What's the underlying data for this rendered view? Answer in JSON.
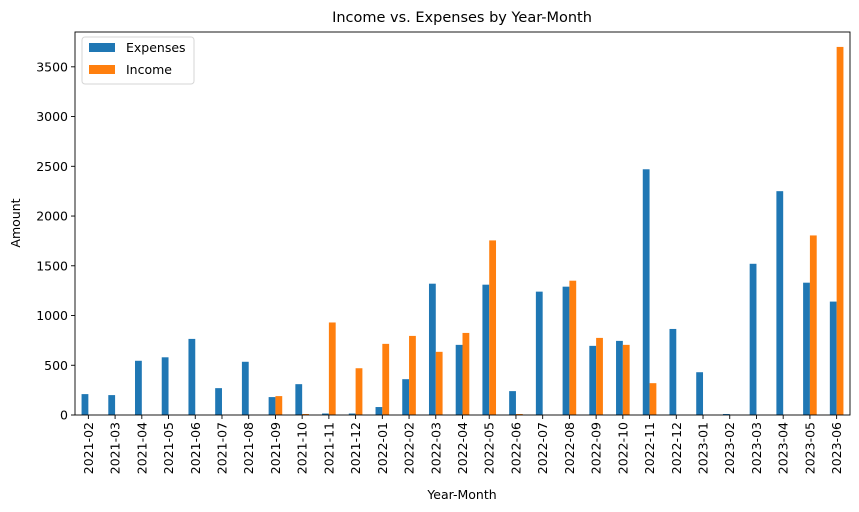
{
  "chart_data": {
    "type": "bar",
    "title": "Income vs. Expenses by Year-Month",
    "xlabel": "Year-Month",
    "ylabel": "Amount",
    "ylim": [
      0,
      3850
    ],
    "yticks": [
      0,
      500,
      1000,
      1500,
      2000,
      2500,
      3000,
      3500
    ],
    "legend_position": "top-left",
    "grid": false,
    "categories": [
      "2021-02",
      "2021-03",
      "2021-04",
      "2021-05",
      "2021-06",
      "2021-07",
      "2021-08",
      "2021-09",
      "2021-10",
      "2021-11",
      "2021-12",
      "2022-01",
      "2022-02",
      "2022-03",
      "2022-04",
      "2022-05",
      "2022-06",
      "2022-07",
      "2022-08",
      "2022-09",
      "2022-10",
      "2022-11",
      "2022-12",
      "2023-01",
      "2023-02",
      "2023-03",
      "2023-04",
      "2023-05",
      "2023-06"
    ],
    "series": [
      {
        "name": "Expenses",
        "color": "#1f77b4",
        "values": [
          210,
          200,
          545,
          580,
          765,
          270,
          535,
          180,
          310,
          15,
          15,
          80,
          360,
          1320,
          705,
          1310,
          240,
          1240,
          1290,
          695,
          745,
          2470,
          865,
          430,
          10,
          1520,
          2250,
          1330,
          1140
        ]
      },
      {
        "name": "Income",
        "color": "#ff7f0e",
        "values": [
          0,
          0,
          0,
          0,
          0,
          0,
          0,
          190,
          10,
          930,
          470,
          715,
          795,
          635,
          825,
          1755,
          10,
          0,
          1350,
          775,
          705,
          320,
          0,
          0,
          0,
          0,
          0,
          1805,
          3700
        ]
      }
    ]
  }
}
